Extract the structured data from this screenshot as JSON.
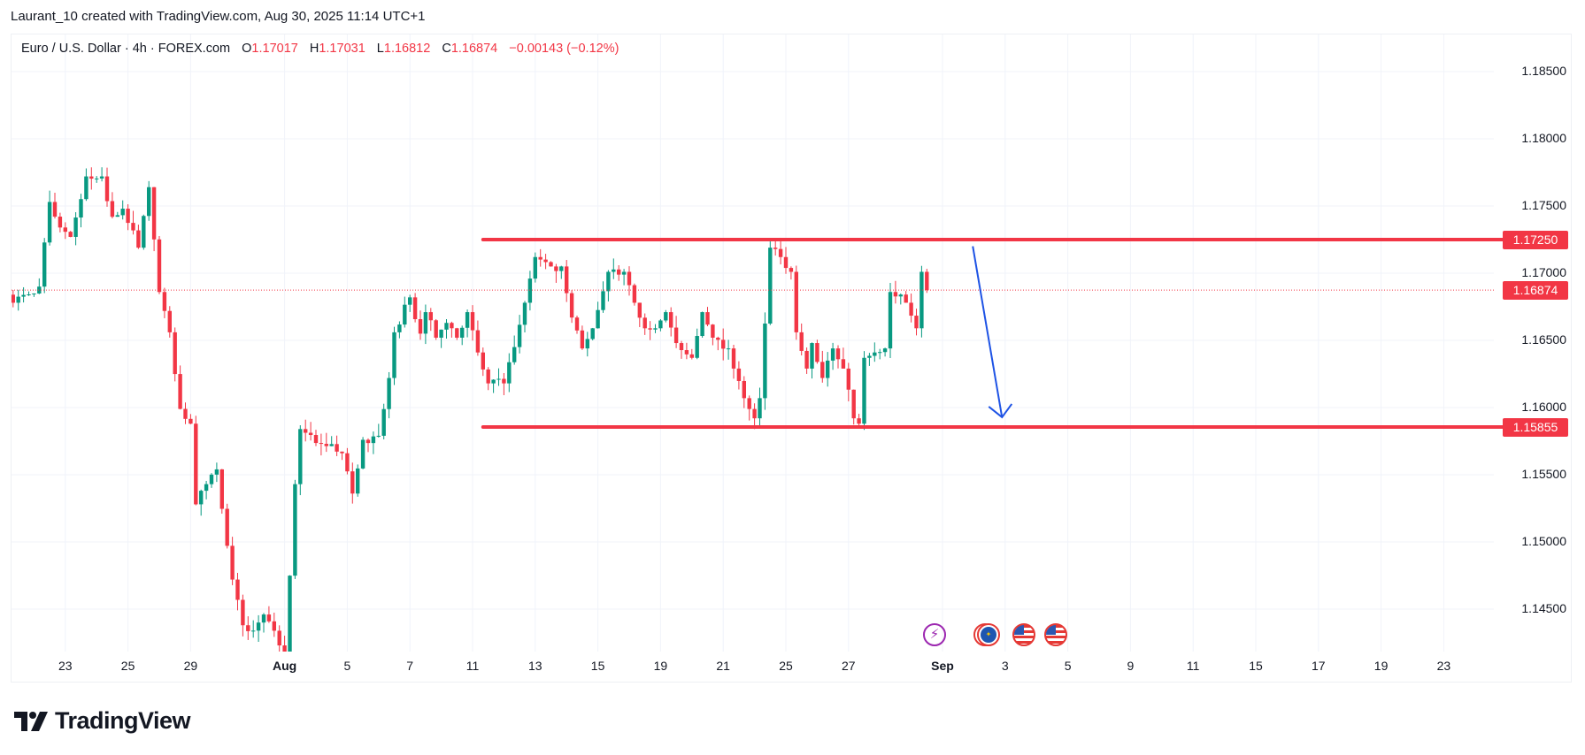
{
  "caption": "Laurant_10 created with TradingView.com, Aug 30, 2025 11:14 UTC+1",
  "legend": {
    "symbol": "Euro / U.S. Dollar · 4h · FOREX.com",
    "o_label": "O",
    "o": "1.17017",
    "h_label": "H",
    "h": "1.17031",
    "l_label": "L",
    "l": "1.16812",
    "c_label": "C",
    "c": "1.16874",
    "change": "−0.00143 (−0.12%)"
  },
  "colors": {
    "up": "#089981",
    "down": "#f23645",
    "level": "#f23645",
    "arrow": "#1e53e5",
    "grid": "#f0f3fa"
  },
  "logo_text": "TradingView",
  "events": [
    {
      "icon": "lightning-icon",
      "color": "#9c27b0"
    },
    {
      "icon": "eu-flag-icon",
      "color": "#e53935"
    },
    {
      "icon": "us-flag-icon",
      "color": "#e53935"
    },
    {
      "icon": "us-flag-icon",
      "color": "#e53935"
    }
  ],
  "chart_data": {
    "type": "candlestick",
    "title": "Euro / U.S. Dollar · 4h · FOREX.com",
    "ylim": [
      1.1419,
      1.188
    ],
    "y_ticks": [
      "1.18500",
      "1.18000",
      "1.17500",
      "1.17000",
      "1.16500",
      "1.16000",
      "1.15500",
      "1.15000",
      "1.14500"
    ],
    "y_tick_values": [
      1.185,
      1.18,
      1.175,
      1.17,
      1.165,
      1.16,
      1.155,
      1.15,
      1.145
    ],
    "x_ticks": [
      {
        "label": "23",
        "bar": 12
      },
      {
        "label": "25",
        "bar": 24
      },
      {
        "label": "29",
        "bar": 36
      },
      {
        "label": "Aug",
        "bar": 54,
        "bold": true
      },
      {
        "label": "5",
        "bar": 66
      },
      {
        "label": "7",
        "bar": 78
      },
      {
        "label": "11",
        "bar": 90
      },
      {
        "label": "13",
        "bar": 102
      },
      {
        "label": "15",
        "bar": 114
      },
      {
        "label": "19",
        "bar": 126
      },
      {
        "label": "21",
        "bar": 138
      },
      {
        "label": "25",
        "bar": 150
      },
      {
        "label": "27",
        "bar": 162
      },
      {
        "label": "Sep",
        "bar": 180,
        "bold": true
      },
      {
        "label": "3",
        "bar": 192
      },
      {
        "label": "5",
        "bar": 204
      },
      {
        "label": "9",
        "bar": 216
      },
      {
        "label": "11",
        "bar": 228
      },
      {
        "label": "15",
        "bar": 240
      },
      {
        "label": "17",
        "bar": 252
      },
      {
        "label": "19",
        "bar": 264
      },
      {
        "label": "23",
        "bar": 276
      }
    ],
    "close_waypoints": [
      [
        2,
        1.1678
      ],
      [
        7,
        1.169
      ],
      [
        9,
        1.1753
      ],
      [
        11,
        1.1734
      ],
      [
        13,
        1.1727
      ],
      [
        16,
        1.1772
      ],
      [
        19,
        1.1772
      ],
      [
        21,
        1.1742
      ],
      [
        23,
        1.1748
      ],
      [
        26,
        1.1719
      ],
      [
        28,
        1.1764
      ],
      [
        30,
        1.1686
      ],
      [
        32,
        1.1656
      ],
      [
        34,
        1.1599
      ],
      [
        36,
        1.1588
      ],
      [
        37,
        1.1528
      ],
      [
        39,
        1.1543
      ],
      [
        41,
        1.1554
      ],
      [
        44,
        1.1472
      ],
      [
        46,
        1.1438
      ],
      [
        48,
        1.1434
      ],
      [
        50,
        1.1446
      ],
      [
        53,
        1.1423
      ],
      [
        54,
        1.141
      ],
      [
        56,
        1.1543
      ],
      [
        57,
        1.1584
      ],
      [
        61,
        1.1573
      ],
      [
        65,
        1.1566
      ],
      [
        67,
        1.1536
      ],
      [
        69,
        1.1576
      ],
      [
        72,
        1.1579
      ],
      [
        74,
        1.1622
      ],
      [
        75,
        1.1656
      ],
      [
        78,
        1.1682
      ],
      [
        80,
        1.1655
      ],
      [
        81,
        1.1671
      ],
      [
        83,
        1.1652
      ],
      [
        85,
        1.1663
      ],
      [
        87,
        1.1652
      ],
      [
        89,
        1.1671
      ],
      [
        91,
        1.1641
      ],
      [
        93,
        1.1618
      ],
      [
        96,
        1.1618
      ],
      [
        98,
        1.1645
      ],
      [
        100,
        1.1678
      ],
      [
        102,
        1.1712
      ],
      [
        105,
        1.1705
      ],
      [
        107,
        1.1705
      ],
      [
        109,
        1.1667
      ],
      [
        111,
        1.1644
      ],
      [
        113,
        1.1659
      ],
      [
        116,
        1.1701
      ],
      [
        119,
        1.1701
      ],
      [
        121,
        1.1678
      ],
      [
        123,
        1.1659
      ],
      [
        125,
        1.1659
      ],
      [
        127,
        1.1671
      ],
      [
        129,
        1.1648
      ],
      [
        132,
        1.1637
      ],
      [
        134,
        1.1671
      ],
      [
        136,
        1.1652
      ],
      [
        139,
        1.1644
      ],
      [
        142,
        1.1607
      ],
      [
        144,
        1.1592
      ],
      [
        145,
        1.1607
      ],
      [
        147,
        1.1719
      ],
      [
        149,
        1.1712
      ],
      [
        151,
        1.1701
      ],
      [
        152,
        1.1656
      ],
      [
        154,
        1.1629
      ],
      [
        155,
        1.1648
      ],
      [
        157,
        1.1622
      ],
      [
        159,
        1.1644
      ],
      [
        161,
        1.1629
      ],
      [
        163,
        1.1592
      ],
      [
        164,
        1.1588
      ],
      [
        165,
        1.1637
      ],
      [
        167,
        1.1641
      ],
      [
        169,
        1.1644
      ],
      [
        170,
        1.1686
      ],
      [
        173,
        1.1678
      ],
      [
        175,
        1.1659
      ],
      [
        176,
        1.1701
      ],
      [
        177,
        1.16874
      ]
    ],
    "last_price": 1.16874,
    "last_price_label": "1.16874",
    "levels": [
      {
        "price": 1.1725,
        "label": "1.17250",
        "from_bar": 92
      },
      {
        "price": 1.15855,
        "label": "1.15855",
        "from_bar": 92
      }
    ],
    "arrow": {
      "from": {
        "bar": 185.8,
        "price": 1.172
      },
      "to": {
        "bar": 191.4,
        "price": 1.15928
      }
    }
  }
}
